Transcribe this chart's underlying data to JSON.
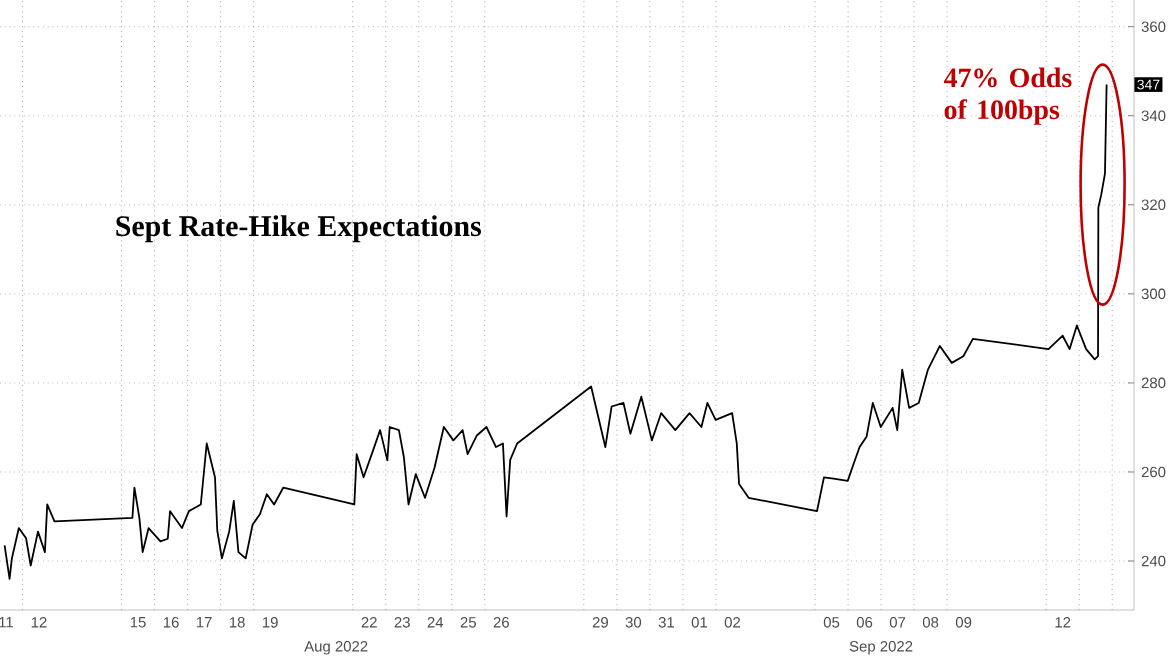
{
  "chart_data": {
    "type": "line",
    "title": "Sept Rate-Hike Expectations",
    "annotations": [
      {
        "text": "47% Odds of 100bps",
        "x": "2022-09-13T19:55",
        "y": 347
      },
      "347",
      "Aug 2022",
      "Sep 2022"
    ],
    "x": [
      "2022-08-11T11:02",
      "2022-08-11T14:38",
      "2022-08-11T16:19",
      "2022-08-11T21:22",
      "2022-08-12T02:38",
      "2022-08-12T06:00",
      "2022-08-12T11:17",
      "2022-08-12T16:19",
      "2022-08-12T18:00",
      "2022-08-12T23:17",
      "2022-08-15T07:55",
      "2022-08-15T09:22",
      "2022-08-15T12:58",
      "2022-08-15T15:22",
      "2022-08-15T19:41",
      "2022-08-16T04:19",
      "2022-08-16T09:36",
      "2022-08-16T11:17",
      "2022-08-16T19:55",
      "2022-08-17T00:58",
      "2022-08-17T09:36",
      "2022-08-17T13:55",
      "2022-08-17T19:55",
      "2022-08-17T21:36",
      "2022-08-18T00:58",
      "2022-08-18T06:14",
      "2022-08-18T09:36",
      "2022-08-18T12:58",
      "2022-08-18T18:14",
      "2022-08-18T23:17",
      "2022-08-19T04:34",
      "2022-08-19T09:36",
      "2022-08-19T14:53",
      "2022-08-19T21:36",
      "2022-08-22T01:12",
      "2022-08-22T02:53",
      "2022-08-22T07:55",
      "2022-08-22T14:53",
      "2022-08-22T19:55",
      "2022-08-23T01:12",
      "2022-08-23T02:53",
      "2022-08-23T09:36",
      "2022-08-23T13:12",
      "2022-08-23T16:34",
      "2022-08-23T21:50",
      "2022-08-24T04:34",
      "2022-08-24T11:31",
      "2022-08-24T18:14",
      "2022-08-25T01:12",
      "2022-08-25T07:55",
      "2022-08-25T11:31",
      "2022-08-25T18:14",
      "2022-08-26T01:12",
      "2022-08-26T08:10",
      "2022-08-26T13:12",
      "2022-08-26T15:50",
      "2022-08-26T18:29",
      "2022-08-26T23:31",
      "2022-08-29T05:17",
      "2022-08-29T11:31",
      "2022-08-29T15:36",
      "2022-08-29T20:10",
      "2022-08-30T04:48",
      "2022-08-30T09:50",
      "2022-08-30T17:46",
      "2022-08-31T01:26",
      "2022-08-31T08:10",
      "2022-08-31T18:29",
      "2022-09-01T04:48",
      "2022-09-01T13:26",
      "2022-09-01T17:46",
      "2022-09-01T23:46",
      "2022-09-02T11:46",
      "2022-09-02T15:07",
      "2022-09-02T16:48",
      "2022-09-02T23:46",
      "2022-09-05T01:26",
      "2022-09-05T06:29",
      "2022-09-05T13:26",
      "2022-09-05T23:46",
      "2022-09-06T03:07",
      "2022-09-06T08:24",
      "2022-09-06T13:26",
      "2022-09-06T18:00",
      "2022-09-06T23:46",
      "2022-09-07T08:24",
      "2022-09-07T11:46",
      "2022-09-07T15:22",
      "2022-09-07T20:24",
      "2022-09-08T03:22",
      "2022-09-08T10:05",
      "2022-09-08T18:43",
      "2022-09-09T03:22",
      "2022-09-09T11:46",
      "2022-09-09T18:43",
      "2022-09-12T01:41",
      "2022-09-12T12:00",
      "2022-09-12T17:02",
      "2022-09-12T22:19",
      "2022-09-13T05:02",
      "2022-09-13T11:17",
      "2022-09-13T13:41",
      "2022-09-13T13:55",
      "2022-09-13T16:05",
      "2022-09-13T18:43",
      "2022-09-13T19:55"
    ],
    "series": [
      {
        "color": "#000000",
        "values": [
          243.5,
          236,
          240.6,
          247.4,
          245.1,
          239,
          246.6,
          242,
          252.7,
          248.9,
          249.7,
          256.5,
          249.7,
          242,
          247.4,
          244.4,
          245,
          251.2,
          247.4,
          251.2,
          252.7,
          266.4,
          258.8,
          246.8,
          240.6,
          246.6,
          253.5,
          242,
          240.6,
          248.2,
          250.5,
          255,
          252.7,
          256.5,
          252.7,
          264,
          258.8,
          264.9,
          269.4,
          262.6,
          270.1,
          269.4,
          263.3,
          252.7,
          259.5,
          254.2,
          261,
          270.1,
          267.1,
          269.4,
          264,
          268.2,
          270.1,
          265.6,
          266.4,
          250,
          262.7,
          266.4,
          279.2,
          271,
          265.6,
          274.7,
          275.5,
          268.6,
          276.9,
          267.1,
          273.2,
          269.4,
          273.2,
          270.1,
          275.5,
          271.7,
          273.2,
          266.4,
          257.3,
          254.2,
          251.2,
          258.8,
          258.5,
          258,
          261,
          265.6,
          267.9,
          275.5,
          270.1,
          274.4,
          269.4,
          283,
          274.4,
          275.5,
          283,
          288.3,
          284.5,
          286,
          289.9,
          287.6,
          290.6,
          287.6,
          292.9,
          287.6,
          285.3,
          286,
          319.4,
          322.4,
          327,
          347
        ]
      }
    ],
    "xlim": [
      "2022-08-11T07:41",
      "2022-09-14T15:50"
    ],
    "ylim": [
      229,
      366
    ],
    "xticks": [
      {
        "value": "2022-08-11T12:00",
        "label": "11"
      },
      {
        "value": "2022-08-12T12:00",
        "label": "12"
      },
      {
        "value": "2022-08-15T12:00",
        "label": "15"
      },
      {
        "value": "2022-08-16T12:00",
        "label": "16"
      },
      {
        "value": "2022-08-17T12:00",
        "label": "17"
      },
      {
        "value": "2022-08-18T12:00",
        "label": "18"
      },
      {
        "value": "2022-08-19T12:00",
        "label": "19"
      },
      {
        "value": "2022-08-22T12:00",
        "label": "22"
      },
      {
        "value": "2022-08-23T12:00",
        "label": "23"
      },
      {
        "value": "2022-08-24T12:00",
        "label": "24"
      },
      {
        "value": "2022-08-25T12:00",
        "label": "25"
      },
      {
        "value": "2022-08-26T12:00",
        "label": "26"
      },
      {
        "value": "2022-08-29T12:00",
        "label": "29"
      },
      {
        "value": "2022-08-30T12:00",
        "label": "30"
      },
      {
        "value": "2022-08-31T12:00",
        "label": "31"
      },
      {
        "value": "2022-09-01T12:00",
        "label": "01"
      },
      {
        "value": "2022-09-02T12:00",
        "label": "02"
      },
      {
        "value": "2022-09-05T12:00",
        "label": "05"
      },
      {
        "value": "2022-09-06T12:00",
        "label": "06"
      },
      {
        "value": "2022-09-07T12:00",
        "label": "07"
      },
      {
        "value": "2022-09-08T12:00",
        "label": "08"
      },
      {
        "value": "2022-09-09T12:00",
        "label": "09"
      },
      {
        "value": "2022-09-12T12:00",
        "label": "12"
      },
      {
        "value": "2022-08-12T00:00",
        "label": null
      },
      {
        "value": "2022-08-15T00:00",
        "label": null
      },
      {
        "value": "2022-08-16T00:00",
        "label": null
      },
      {
        "value": "2022-08-17T00:00",
        "label": null
      },
      {
        "value": "2022-08-18T00:00",
        "label": null
      },
      {
        "value": "2022-08-19T00:00",
        "label": null
      },
      {
        "value": "2022-08-22T00:00",
        "label": null
      },
      {
        "value": "2022-08-23T00:00",
        "label": null
      },
      {
        "value": "2022-08-24T00:00",
        "label": null
      },
      {
        "value": "2022-08-25T00:00",
        "label": null
      },
      {
        "value": "2022-08-26T00:00",
        "label": null
      },
      {
        "value": "2022-08-29T00:00",
        "label": null
      },
      {
        "value": "2022-08-30T00:00",
        "label": null
      },
      {
        "value": "2022-08-31T00:00",
        "label": null
      },
      {
        "value": "2022-09-01T00:00",
        "label": null
      },
      {
        "value": "2022-09-02T00:00",
        "label": null
      },
      {
        "value": "2022-09-05T00:00",
        "label": null
      },
      {
        "value": "2022-09-06T00:00",
        "label": null
      },
      {
        "value": "2022-09-07T00:00",
        "label": null
      },
      {
        "value": "2022-09-08T00:00",
        "label": null
      },
      {
        "value": "2022-09-09T00:00",
        "label": null
      },
      {
        "value": "2022-09-12T00:00",
        "label": null
      },
      {
        "value": "2022-09-13T00:00",
        "label": null
      },
      {
        "value": "2022-09-14T00:00",
        "label": null
      }
    ],
    "yticks": [
      240,
      260,
      280,
      300,
      320,
      340,
      360
    ],
    "grid": true
  }
}
